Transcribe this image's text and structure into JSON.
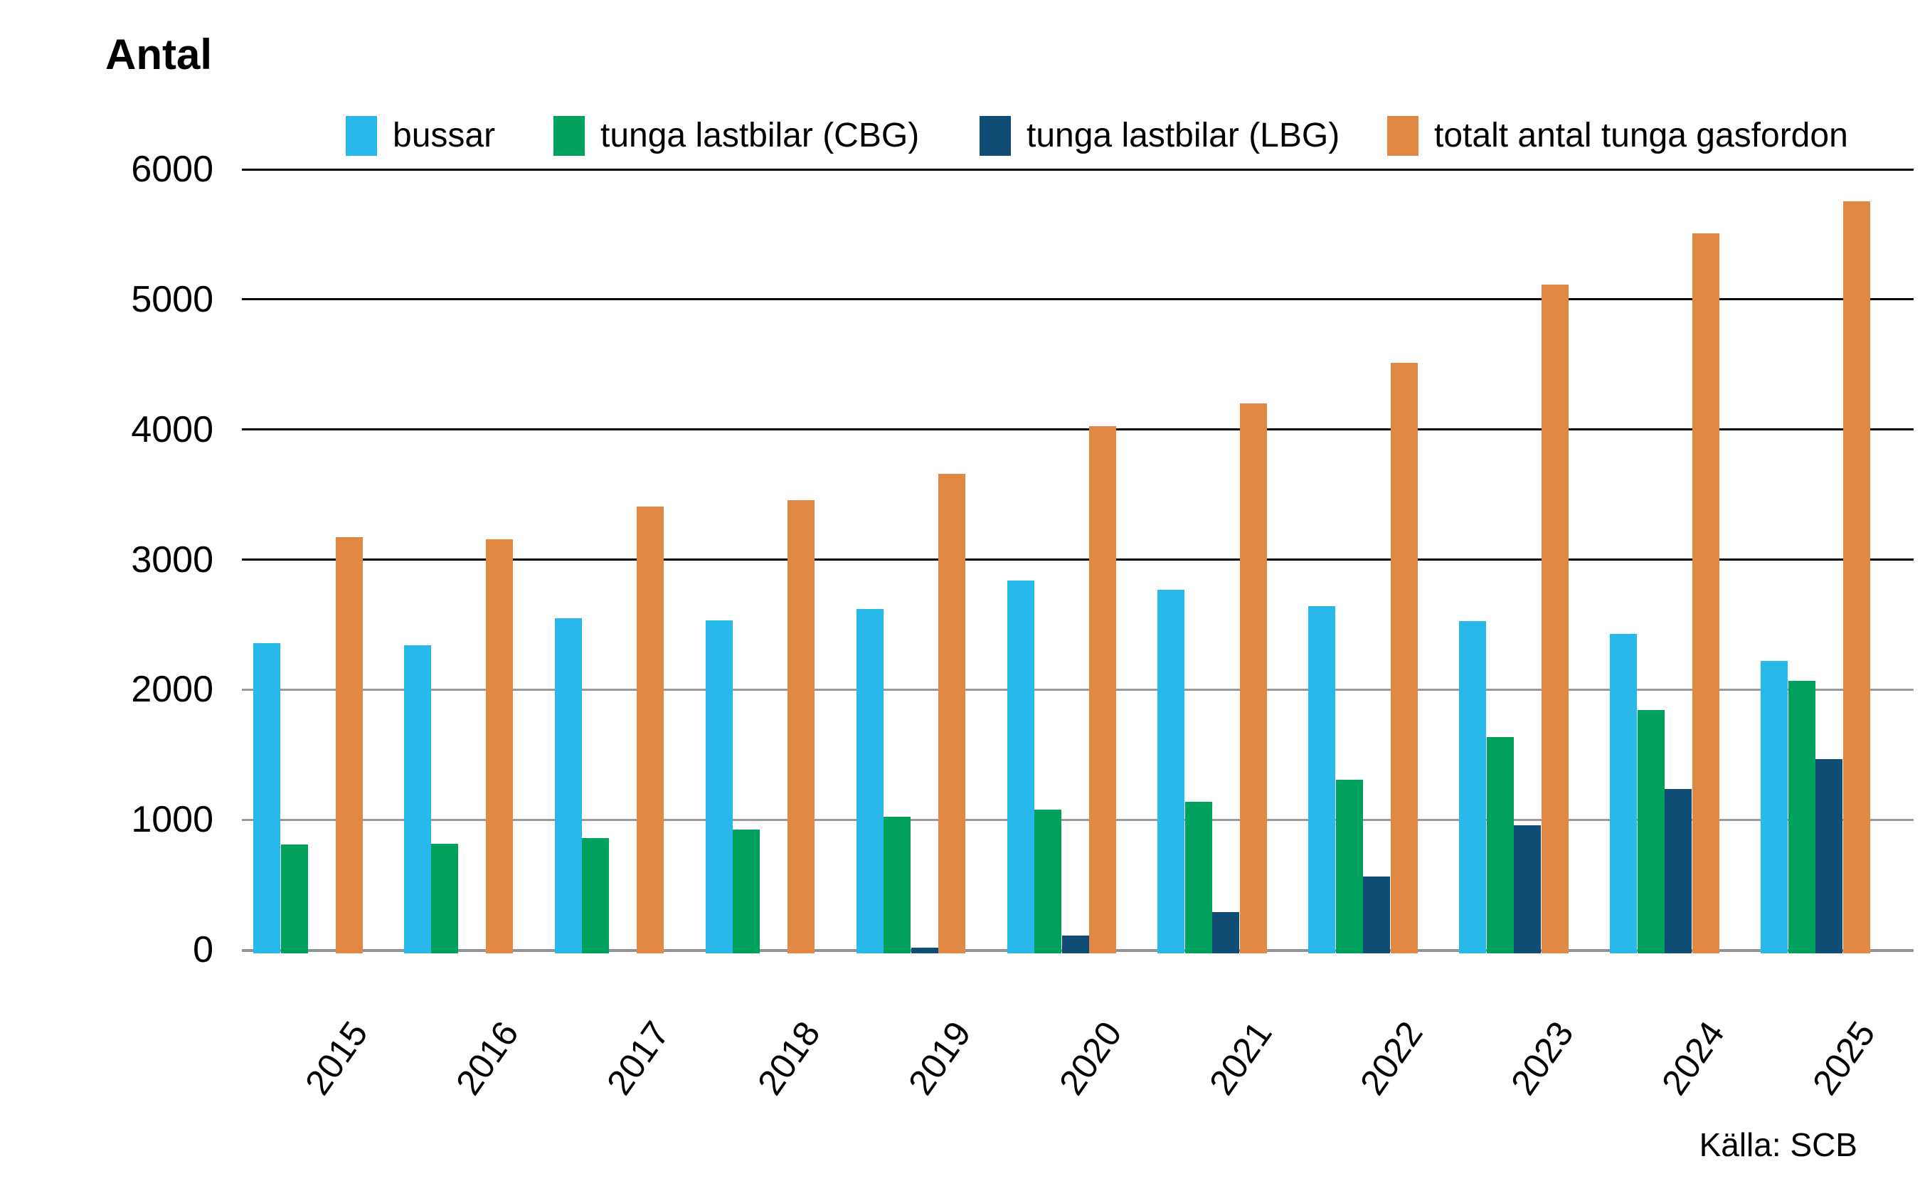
{
  "title": "Antal",
  "source": "Källa: SCB",
  "chart_data": {
    "type": "bar",
    "title": "Antal",
    "categories": [
      "2015",
      "2016",
      "2017",
      "2018",
      "2019",
      "2020",
      "2021",
      "2022",
      "2023",
      "2024",
      "2025"
    ],
    "series": [
      {
        "name": "bussar",
        "color": "#29B8EA",
        "values": [
          2360,
          2340,
          2550,
          2530,
          2620,
          2840,
          2770,
          2640,
          2525,
          2430,
          2220
        ]
      },
      {
        "name": "tunga lastbilar (CBG)",
        "color": "#00A15C",
        "values": [
          810,
          815,
          860,
          925,
          1025,
          1075,
          1140,
          1305,
          1635,
          1845,
          2070
        ]
      },
      {
        "name": "tunga lastbilar (LBG)",
        "color": "#0F4D75",
        "values": [
          0,
          0,
          0,
          0,
          15,
          110,
          290,
          565,
          955,
          1235,
          1465
        ]
      },
      {
        "name": "totalt antal tunga gasfordon",
        "color": "#E28845",
        "values": [
          3170,
          3155,
          3410,
          3455,
          3660,
          4025,
          4200,
          4510,
          5115,
          5510,
          5755
        ]
      }
    ],
    "ylabel": "Antal",
    "ylim": [
      0,
      6000
    ],
    "yticks": [
      0,
      1000,
      2000,
      3000,
      4000,
      5000,
      6000
    ],
    "grid": true,
    "gridline_color_major": "#000000",
    "gridline_color_minor": "#9B9B9B",
    "legend_position": "top",
    "source": "Källa: SCB"
  }
}
